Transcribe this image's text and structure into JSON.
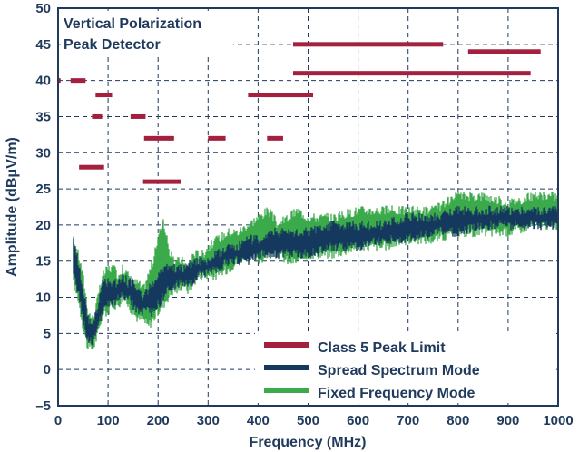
{
  "chart_data": {
    "type": "line",
    "annotation": [
      "Vertical Polarization",
      "Peak Detector"
    ],
    "xlabel": "Frequency (MHz)",
    "ylabel": "Amplitude (dBμV/m)",
    "xlim": [
      0,
      1000
    ],
    "ylim": [
      -5,
      50
    ],
    "x_ticks": [
      "0",
      "100",
      "200",
      "300",
      "400",
      "500",
      "600",
      "700",
      "800",
      "900",
      "1000"
    ],
    "y_ticks": [
      "50",
      "45",
      "40",
      "35",
      "30",
      "25",
      "20",
      "15",
      "10",
      "5",
      "0",
      "–5"
    ],
    "grid": true,
    "legend_placement": "bottom-right",
    "legend": [
      "Class 5 Peak Limit",
      "Spread Spectrum Mode",
      "Fixed Frequency Mode"
    ],
    "colors": {
      "limit": "#a3203f",
      "spread": "#15395e",
      "fixed": "#3aaa4b",
      "text": "#1f3a5c",
      "grid": "#1f3a5c"
    },
    "series": [
      {
        "name": "Class 5 Peak Limit",
        "segments": [
          {
            "x": [
              0,
              5
            ],
            "y": 40
          },
          {
            "x": [
              25,
              55
            ],
            "y": 40
          },
          {
            "x": [
              75,
              108
            ],
            "y": 38
          },
          {
            "x": [
              68,
              88
            ],
            "y": 35
          },
          {
            "x": [
              145,
              175
            ],
            "y": 35
          },
          {
            "x": [
              42,
              92
            ],
            "y": 28
          },
          {
            "x": [
              172,
              232
            ],
            "y": 32
          },
          {
            "x": [
              300,
              335
            ],
            "y": 32
          },
          {
            "x": [
              418,
              450
            ],
            "y": 32
          },
          {
            "x": [
              170,
              245
            ],
            "y": 26
          },
          {
            "x": [
              380,
              510
            ],
            "y": 38
          },
          {
            "x": [
              470,
              770
            ],
            "y": 45
          },
          {
            "x": [
              820,
              965
            ],
            "y": 44
          },
          {
            "x": [
              470,
              945
            ],
            "y": 41
          }
        ]
      },
      {
        "name": "Fixed Frequency Mode",
        "x": [
          30,
          40,
          50,
          60,
          70,
          80,
          90,
          100,
          110,
          120,
          130,
          140,
          150,
          160,
          170,
          180,
          190,
          200,
          210,
          220,
          230,
          240,
          250,
          260,
          270,
          280,
          290,
          300,
          320,
          340,
          360,
          380,
          400,
          420,
          440,
          460,
          480,
          500,
          550,
          600,
          650,
          700,
          750,
          800,
          850,
          900,
          950,
          1000
        ],
        "y_low": [
          12,
          10,
          6,
          3,
          3,
          5,
          8,
          8,
          9,
          9,
          10,
          9,
          8,
          7,
          7,
          6,
          7,
          8,
          9,
          10,
          11,
          11,
          12,
          11,
          12,
          13,
          13,
          13,
          13,
          14,
          15,
          16,
          15,
          16,
          16,
          15,
          15,
          16,
          16,
          17,
          17,
          18,
          18,
          19,
          19,
          19,
          20,
          20
        ],
        "y_high": [
          18,
          16,
          13,
          8,
          7,
          10,
          13,
          14,
          14,
          13,
          14,
          13,
          12,
          12,
          11,
          13,
          15,
          18,
          21,
          17,
          15,
          15,
          15,
          14,
          16,
          16,
          16,
          17,
          18,
          19,
          19,
          20,
          21,
          22,
          20,
          21,
          22,
          21,
          21,
          22,
          22,
          22,
          22,
          24,
          24,
          23,
          24,
          24
        ]
      },
      {
        "name": "Spread Spectrum Mode",
        "x": [
          30,
          40,
          50,
          60,
          70,
          80,
          90,
          100,
          110,
          120,
          130,
          140,
          150,
          160,
          170,
          180,
          190,
          200,
          210,
          220,
          230,
          240,
          250,
          260,
          270,
          280,
          290,
          300,
          320,
          340,
          360,
          380,
          400,
          420,
          440,
          460,
          480,
          500,
          550,
          600,
          650,
          700,
          750,
          800,
          850,
          900,
          950,
          1000
        ],
        "y_low": [
          13,
          11,
          7,
          4,
          4,
          6,
          8,
          9,
          9,
          10,
          10,
          10,
          9,
          8,
          8,
          8,
          8,
          9,
          10,
          11,
          11,
          12,
          12,
          12,
          12,
          13,
          13,
          14,
          14,
          15,
          15,
          15,
          16,
          16,
          16,
          16,
          16,
          16,
          17,
          17,
          18,
          18,
          19,
          19,
          20,
          20,
          20,
          20
        ],
        "y_high": [
          18,
          15,
          11,
          7,
          6,
          9,
          12,
          12,
          12,
          12,
          13,
          12,
          12,
          11,
          10,
          11,
          12,
          13,
          14,
          14,
          14,
          14,
          14,
          14,
          15,
          15,
          15,
          15,
          16,
          17,
          17,
          18,
          18,
          19,
          19,
          19,
          19,
          19,
          20,
          20,
          20,
          21,
          21,
          22,
          22,
          22,
          22,
          22
        ]
      }
    ]
  }
}
